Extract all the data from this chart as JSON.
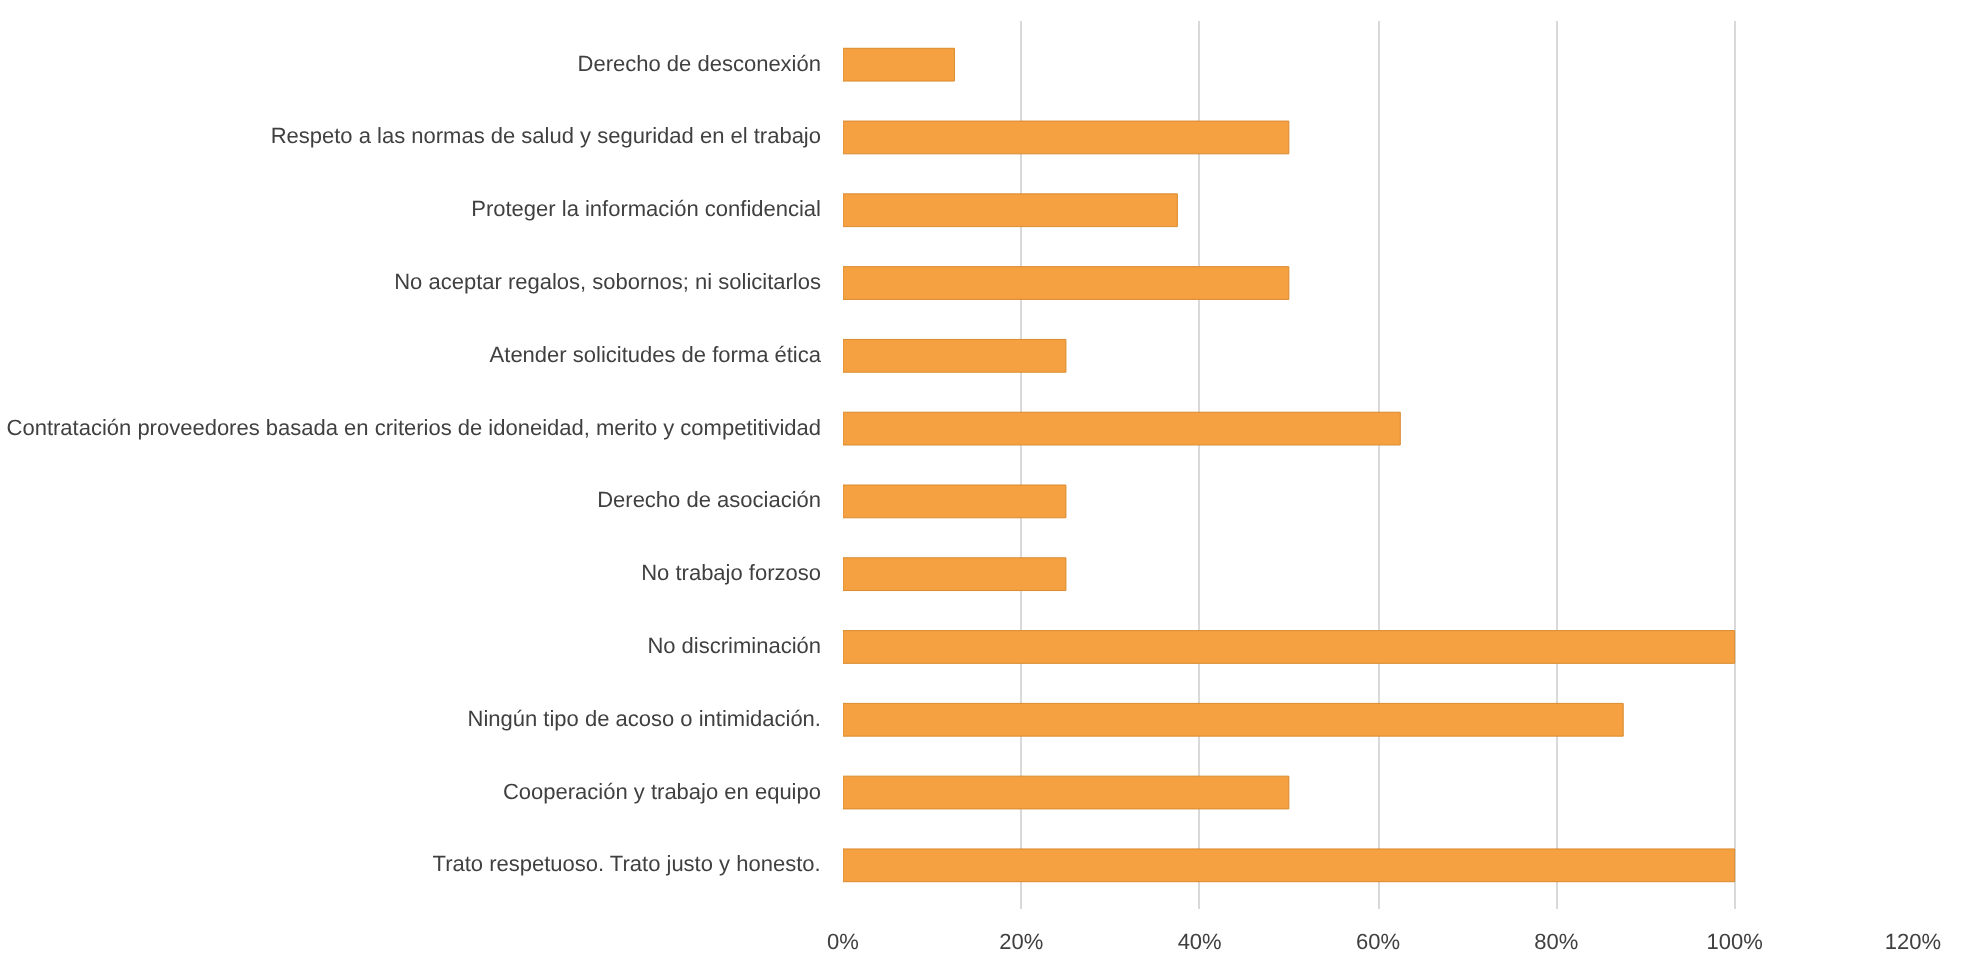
{
  "chart_data": {
    "type": "bar",
    "orientation": "horizontal",
    "categories": [
      "Derecho de desconexión",
      "Respeto a las normas de salud y seguridad en el trabajo",
      "Proteger la información confidencial",
      "No aceptar regalos, sobornos; ni solicitarlos",
      "Atender solicitudes de forma ética",
      "Contratación proveedores basada en criterios de idoneidad, merito y competitividad",
      "Derecho de asociación",
      "No trabajo forzoso",
      "No discriminación",
      "Ningún tipo de acoso o intimidación.",
      "Cooperación y trabajo en equipo",
      "Trato respetuoso. Trato justo y honesto."
    ],
    "values": [
      12.5,
      50,
      37.5,
      50,
      25,
      62.5,
      25,
      25,
      100,
      87.5,
      50,
      100
    ],
    "color": "#f5a142",
    "xlim": [
      0,
      120
    ],
    "xticks": [
      {
        "value": 0,
        "label": "0%"
      },
      {
        "value": 20,
        "label": "20%"
      },
      {
        "value": 40,
        "label": "40%"
      },
      {
        "value": 60,
        "label": "60%"
      },
      {
        "value": 80,
        "label": "80%"
      },
      {
        "value": 100,
        "label": "100%"
      },
      {
        "value": 120,
        "label": "120%"
      }
    ],
    "grid": "x"
  }
}
